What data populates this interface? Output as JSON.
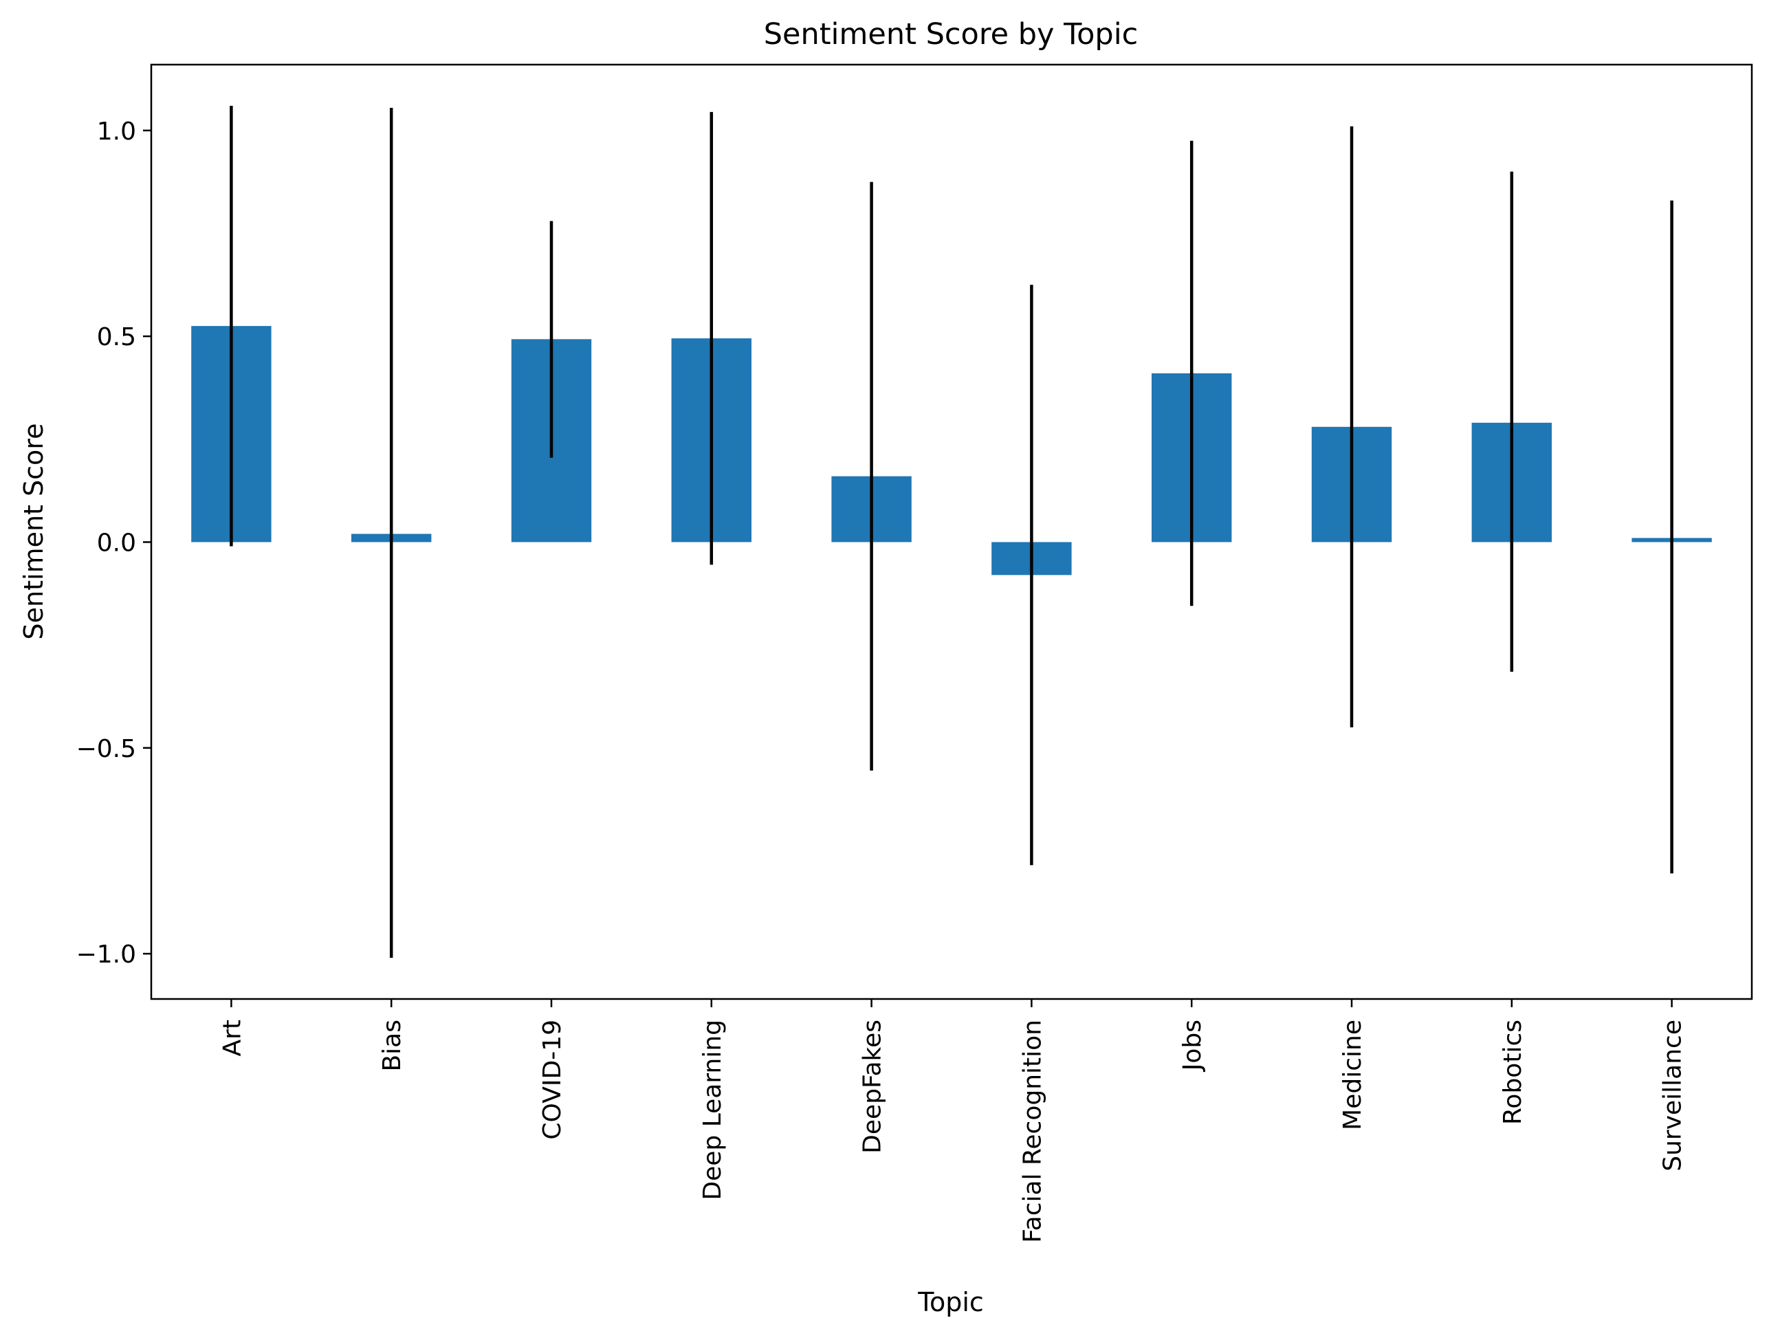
{
  "chart_data": {
    "type": "bar",
    "title": "Sentiment Score by Topic",
    "xlabel": "Topic",
    "ylabel": "Sentiment Score",
    "categories": [
      "Art",
      "Bias",
      "COVID-19",
      "Deep Learning",
      "DeepFakes",
      "Facial Recognition",
      "Jobs",
      "Medicine",
      "Robotics",
      "Surveillance"
    ],
    "values": [
      0.525,
      0.02,
      0.493,
      0.495,
      0.16,
      -0.08,
      0.41,
      0.28,
      0.29,
      0.01
    ],
    "error_low": [
      -0.01,
      -1.01,
      0.205,
      -0.055,
      -0.555,
      -0.785,
      -0.155,
      -0.45,
      -0.315,
      -0.805
    ],
    "error_high": [
      1.06,
      1.055,
      0.78,
      1.045,
      0.875,
      0.625,
      0.975,
      1.01,
      0.9,
      0.83
    ],
    "ylim": [
      -1.11,
      1.16
    ],
    "yticks": [
      -1.0,
      -0.5,
      0.0,
      0.5,
      1.0
    ],
    "ytick_labels": [
      "−1.0",
      "−0.5",
      "0.0",
      "0.5",
      "1.0"
    ],
    "grid": false,
    "legend": "none",
    "colors": {
      "bar": "#1f77b4",
      "errorbar": "#000000",
      "axes": "#000000"
    }
  }
}
